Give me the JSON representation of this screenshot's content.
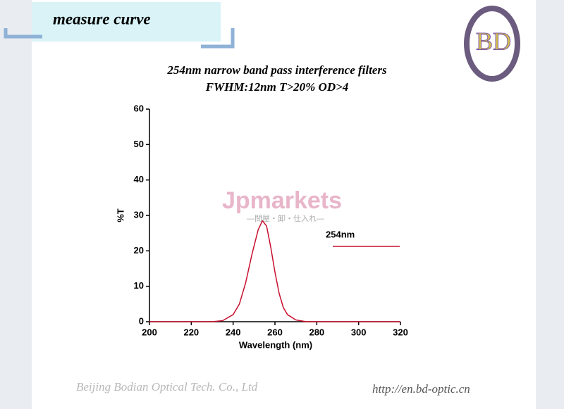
{
  "header": {
    "title": "measure curve"
  },
  "logo": {
    "text": "BD"
  },
  "chart_data": {
    "type": "line",
    "title": "254nm narrow band pass interference filters",
    "subtitle": "FWHM:12nm  T>20% OD>4",
    "x_label": "Wavelength (nm)",
    "y_label": "%T",
    "x": [
      200,
      210,
      220,
      230,
      235,
      240,
      243,
      246,
      249,
      252,
      254,
      256,
      258,
      260,
      262,
      264,
      266,
      270,
      275,
      290,
      320
    ],
    "series": [
      {
        "name": "254nm",
        "color": "#c8102e",
        "values": [
          0,
          0,
          0,
          0,
          0.3,
          2,
          5,
          11,
          19,
          26,
          28.5,
          27,
          21,
          14,
          8,
          4,
          2,
          0.5,
          0,
          0,
          0
        ]
      }
    ],
    "xlim": [
      200,
      320
    ],
    "ylim": [
      0,
      60
    ],
    "xticks": [
      200,
      220,
      240,
      260,
      280,
      300,
      320
    ],
    "yticks": [
      0,
      10,
      20,
      30,
      40,
      50,
      60
    ]
  },
  "watermark": {
    "main": "Jpmarkets",
    "sub": "—問屋・卸・仕入れ—"
  },
  "footer": {
    "company": "Beijing Bodian Optical Tech. Co., Ltd",
    "url": "http://en.bd-optic.cn"
  }
}
